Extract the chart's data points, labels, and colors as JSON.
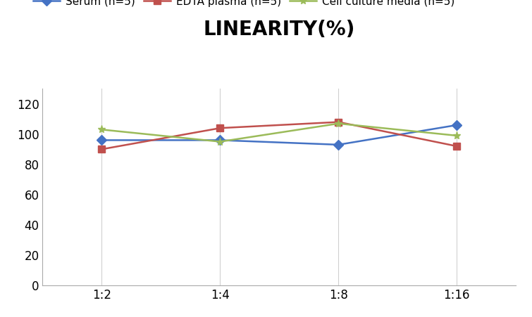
{
  "title": "LINEARITY(%)",
  "x_labels": [
    "1:2",
    "1:4",
    "1:8",
    "1:16"
  ],
  "x_positions": [
    0,
    1,
    2,
    3
  ],
  "series": [
    {
      "label": "Serum (n=5)",
      "values": [
        96,
        96,
        93,
        106
      ],
      "color": "#4472C4",
      "marker": "D"
    },
    {
      "label": "EDTA plasma (n=5)",
      "values": [
        90,
        104,
        108,
        92
      ],
      "color": "#C0504D",
      "marker": "s"
    },
    {
      "label": "Cell culture media (n=5)",
      "values": [
        103,
        95,
        107,
        99
      ],
      "color": "#9BBB59",
      "marker": "*"
    }
  ],
  "ylim": [
    0,
    130
  ],
  "yticks": [
    0,
    20,
    40,
    60,
    80,
    100,
    120
  ],
  "title_fontsize": 20,
  "legend_fontsize": 11,
  "tick_fontsize": 12,
  "background_color": "#ffffff",
  "grid_color": "#d0d0d0"
}
